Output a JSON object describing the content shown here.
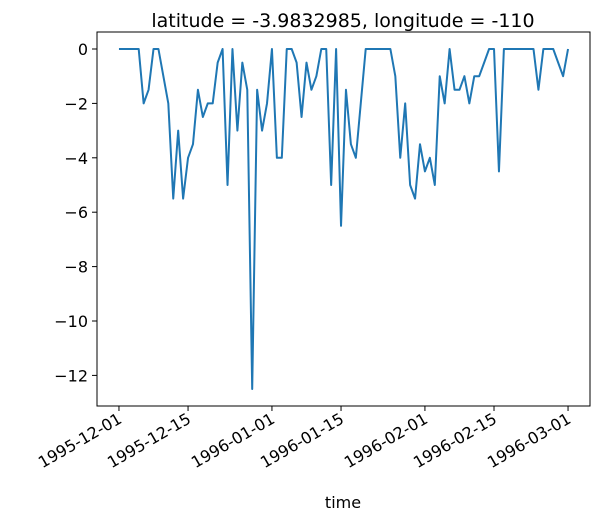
{
  "chart_data": {
    "type": "line",
    "title": "latitude = -3.9832985, longitude = -110",
    "xlabel": "time",
    "color": "#1f77b4",
    "x": [
      "1995-12-01",
      "1995-12-02",
      "1995-12-03",
      "1995-12-04",
      "1995-12-05",
      "1995-12-06",
      "1995-12-07",
      "1995-12-08",
      "1995-12-09",
      "1995-12-10",
      "1995-12-11",
      "1995-12-12",
      "1995-12-13",
      "1995-12-14",
      "1995-12-15",
      "1995-12-16",
      "1995-12-17",
      "1995-12-18",
      "1995-12-19",
      "1995-12-20",
      "1995-12-21",
      "1995-12-22",
      "1995-12-23",
      "1995-12-24",
      "1995-12-25",
      "1995-12-26",
      "1995-12-27",
      "1995-12-28",
      "1995-12-29",
      "1995-12-30",
      "1995-12-31",
      "1996-01-01",
      "1996-01-02",
      "1996-01-03",
      "1996-01-04",
      "1996-01-05",
      "1996-01-06",
      "1996-01-07",
      "1996-01-08",
      "1996-01-09",
      "1996-01-10",
      "1996-01-11",
      "1996-01-12",
      "1996-01-13",
      "1996-01-14",
      "1996-01-15",
      "1996-01-16",
      "1996-01-17",
      "1996-01-18",
      "1996-01-19",
      "1996-01-20",
      "1996-01-21",
      "1996-01-22",
      "1996-01-23",
      "1996-01-24",
      "1996-01-25",
      "1996-01-26",
      "1996-01-27",
      "1996-01-28",
      "1996-01-29",
      "1996-01-30",
      "1996-01-31",
      "1996-02-01",
      "1996-02-02",
      "1996-02-03",
      "1996-02-04",
      "1996-02-05",
      "1996-02-06",
      "1996-02-07",
      "1996-02-08",
      "1996-02-09",
      "1996-02-10",
      "1996-02-11",
      "1996-02-12",
      "1996-02-13",
      "1996-02-14",
      "1996-02-15",
      "1996-02-16",
      "1996-02-17",
      "1996-02-18",
      "1996-02-19",
      "1996-02-20",
      "1996-02-21",
      "1996-02-22",
      "1996-02-23",
      "1996-02-24",
      "1996-02-25",
      "1996-02-26",
      "1996-02-27",
      "1996-02-28",
      "1996-02-29",
      "1996-03-01"
    ],
    "values": [
      0,
      0,
      0,
      0,
      0,
      -2,
      -1.5,
      0,
      0,
      -1,
      -2,
      -5.5,
      -3,
      -5.5,
      -4,
      -3.5,
      -1.5,
      -2.5,
      -2,
      -2,
      -0.5,
      0,
      -5,
      0,
      -3,
      -0.5,
      -1.5,
      -12.5,
      -1.5,
      -3,
      -2,
      0,
      -4,
      -4,
      0,
      0,
      -0.5,
      -2.5,
      -0.5,
      -1.5,
      -1,
      0,
      0,
      -5,
      0,
      -6.5,
      -1.5,
      -3.5,
      -4,
      -2,
      0,
      0,
      0,
      0,
      0,
      0,
      -1,
      -4,
      -2,
      -5,
      -5.5,
      -3.5,
      -4.5,
      -4,
      -5,
      -1,
      -2,
      0,
      -1.5,
      -1.5,
      -1,
      -2,
      -1,
      -1,
      -0.5,
      0,
      0,
      -4.5,
      0,
      0,
      0,
      0,
      0,
      0,
      0,
      -1.5,
      0,
      0,
      0,
      -0.5,
      -1,
      0
    ],
    "xlim": [
      "1995-11-26T13:12:00Z",
      "1996-03-05T10:48:00Z"
    ],
    "xticks": [
      "1995-12-01",
      "1995-12-15",
      "1996-01-01",
      "1996-01-15",
      "1996-02-01",
      "1996-02-15",
      "1996-03-01"
    ],
    "ylim": [
      -13.125,
      0.625
    ],
    "yticks": [
      {
        "value": -12,
        "label": "−12"
      },
      {
        "value": -10,
        "label": "−10"
      },
      {
        "value": -8,
        "label": "−8"
      },
      {
        "value": -6,
        "label": "−6"
      },
      {
        "value": -4,
        "label": "−4"
      },
      {
        "value": -2,
        "label": "−2"
      },
      0
    ]
  }
}
